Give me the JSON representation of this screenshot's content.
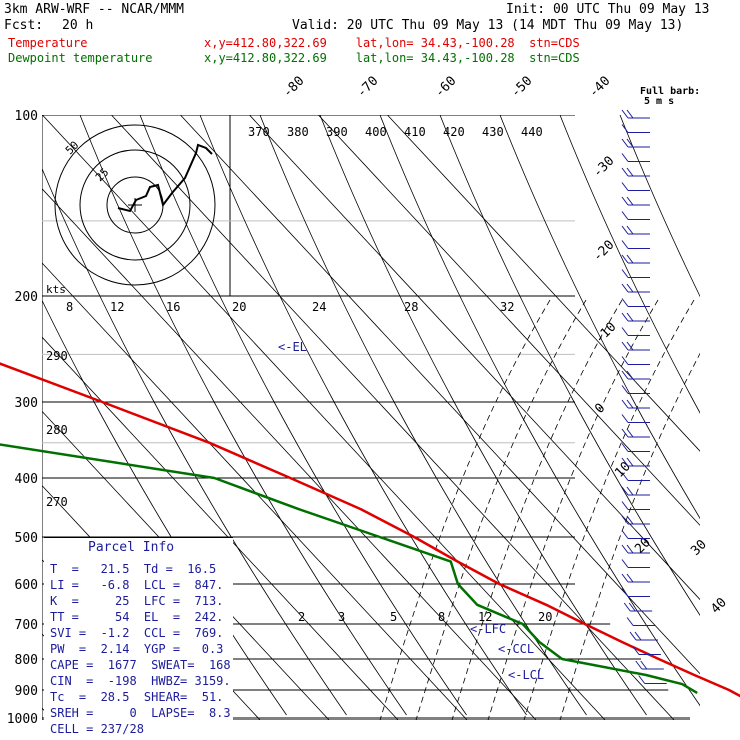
{
  "header": {
    "model": "3km ARW-WRF -- NCAR/MMM",
    "init": "Init: 00 UTC Thu 09 May 13",
    "fcst_label": "Fcst:",
    "fcst_value": "20 h",
    "valid": "Valid: 20 UTC Thu 09 May 13 (14 MDT Thu 09 May 13)",
    "temp_label": "Temperature",
    "temp_loc": "x,y=412.80,322.69    lat,lon= 34.43,-100.28  stn=CDS",
    "dew_label": "Dewpoint temperature",
    "dew_loc": "x,y=412.80,322.69    lat,lon= 34.43,-100.28  stn=CDS"
  },
  "barb_legend": {
    "line1": "Full barb:",
    "line2": "5 m s"
  },
  "hodograph": {
    "rings": [
      "50",
      "25"
    ],
    "units": "kts",
    "speed_ticks": [
      "8",
      "12",
      "16",
      "20",
      "24",
      "28",
      "32"
    ]
  },
  "colors": {
    "temperature": "#e00000",
    "dewpoint": "#007000",
    "parcel": "#1c1c9c",
    "barbs": "#1c1c9c"
  },
  "chart_data": {
    "type": "line",
    "subtype": "skew-t",
    "pressure_ticks": [
      "100",
      "200",
      "300",
      "400",
      "500",
      "600",
      "700",
      "800",
      "900",
      "1000"
    ],
    "isotherm_labels": [
      "-80",
      "-70",
      "-60",
      "-50",
      "-40",
      "-30",
      "-20",
      "-10",
      "0",
      "10",
      "20",
      "30",
      "40"
    ],
    "theta_labels": [
      "370",
      "380",
      "390",
      "400",
      "410",
      "420",
      "430",
      "440"
    ],
    "dry_adiabat_labels": [
      "290",
      "280",
      "270"
    ],
    "mixing_ratio_labels": [
      "2",
      "3",
      "5",
      "8",
      "12",
      "20"
    ],
    "series": [
      {
        "name": "Temperature",
        "points": [
          [
            100,
            -61
          ],
          [
            150,
            -57
          ],
          [
            200,
            -50
          ],
          [
            250,
            -42
          ],
          [
            300,
            -30
          ],
          [
            350,
            -20
          ],
          [
            400,
            -13
          ],
          [
            450,
            -7
          ],
          [
            500,
            -3
          ],
          [
            550,
            0
          ],
          [
            600,
            3
          ],
          [
            650,
            7
          ],
          [
            700,
            10
          ],
          [
            750,
            13
          ],
          [
            800,
            16
          ],
          [
            850,
            19
          ],
          [
            900,
            22
          ],
          [
            925,
            23
          ]
        ]
      },
      {
        "name": "Dewpoint temperature",
        "points": [
          [
            100,
            -64
          ],
          [
            150,
            -68
          ],
          [
            200,
            -72
          ],
          [
            250,
            -73
          ],
          [
            300,
            -67
          ],
          [
            350,
            -52
          ],
          [
            400,
            -24
          ],
          [
            450,
            -16
          ],
          [
            500,
            -8
          ],
          [
            550,
            -1
          ],
          [
            600,
            -3
          ],
          [
            650,
            -3
          ],
          [
            700,
            1
          ],
          [
            750,
            1
          ],
          [
            800,
            2
          ],
          [
            850,
            12
          ],
          [
            880,
            16
          ],
          [
            910,
            17
          ]
        ]
      }
    ],
    "markers": [
      "<-EL",
      "<-LFC",
      "<-CCL",
      "<-LCL"
    ]
  },
  "parcel_info": {
    "title": "Parcel Info",
    "rows": [
      "T  =   21.5  Td =  16.5",
      "LI =   -6.8  LCL =  847.",
      "K  =     25  LFC =  713.",
      "TT =     54  EL  =  242.",
      "SVI =  -1.2  CCL =  769.",
      "PW  =  2.14  YGP =   0.3",
      "CAPE =  1677  SWEAT=  168",
      "CIN  =  -198  HWBZ= 3159.",
      "Tc  =  28.5  SHEAR=  51.",
      "SREH =     0  LAPSE=  8.3",
      "CELL = 237/28"
    ]
  }
}
